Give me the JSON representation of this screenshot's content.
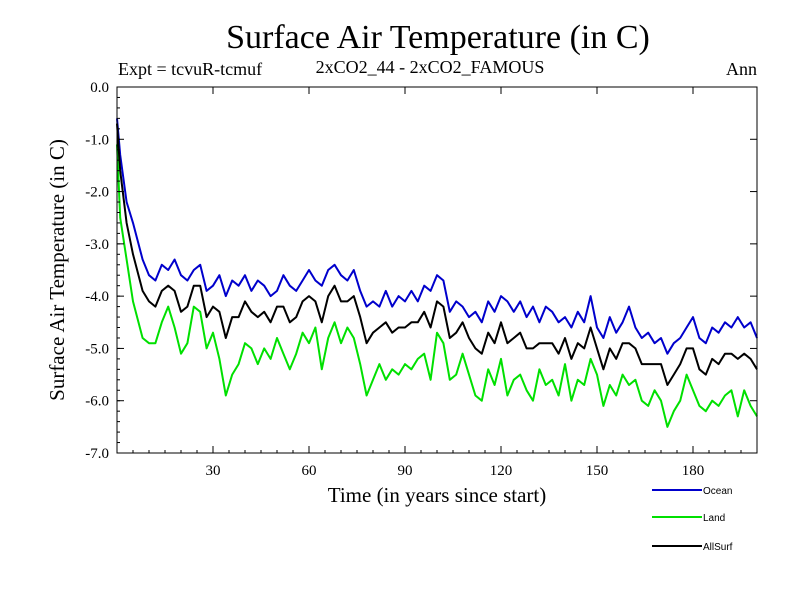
{
  "chart_data": {
    "type": "line",
    "title": "Surface Air Temperature (in C)",
    "expt_label": "Expt = tcvuR-tcmuf",
    "subtitle": "2xCO2_44 - 2xCO2_FAMOUS",
    "season": "Ann",
    "xlabel": "Time (in years since start)",
    "ylabel": "Surface Air Temperature (in C)",
    "xlim": [
      0,
      200
    ],
    "ylim": [
      -7.0,
      0.0
    ],
    "xticks": [
      30,
      60,
      90,
      120,
      150,
      180
    ],
    "yticks": [
      0.0,
      -1.0,
      -2.0,
      -3.0,
      -4.0,
      -5.0,
      -6.0,
      -7.0
    ],
    "ytick_labels": [
      "0.0",
      "-1.0",
      "-2.0",
      "-3.0",
      "-4.0",
      "-5.0",
      "-6.0",
      "-7.0"
    ],
    "legend_position": "bottom-right, below plot",
    "series": [
      {
        "name": "Ocean",
        "color": "#0000cc",
        "x": [
          0,
          1,
          3,
          5,
          8,
          10,
          12,
          14,
          16,
          18,
          20,
          22,
          24,
          26,
          28,
          30,
          32,
          34,
          36,
          38,
          40,
          42,
          44,
          46,
          48,
          50,
          52,
          54,
          56,
          58,
          60,
          62,
          64,
          66,
          68,
          70,
          72,
          74,
          76,
          78,
          80,
          82,
          84,
          86,
          88,
          90,
          92,
          94,
          96,
          98,
          100,
          102,
          104,
          106,
          108,
          110,
          112,
          114,
          116,
          118,
          120,
          122,
          124,
          126,
          128,
          130,
          132,
          134,
          136,
          138,
          140,
          142,
          144,
          146,
          148,
          150,
          152,
          154,
          156,
          158,
          160,
          162,
          164,
          166,
          168,
          170,
          172,
          174,
          176,
          178,
          180,
          182,
          184,
          186,
          188,
          190,
          192,
          194,
          196,
          198,
          200
        ],
        "values": [
          -0.6,
          -1.3,
          -2.2,
          -2.6,
          -3.3,
          -3.6,
          -3.7,
          -3.4,
          -3.5,
          -3.3,
          -3.6,
          -3.7,
          -3.5,
          -3.4,
          -3.9,
          -3.8,
          -3.6,
          -4.0,
          -3.7,
          -3.8,
          -3.6,
          -3.9,
          -3.7,
          -3.8,
          -4.0,
          -3.9,
          -3.6,
          -3.8,
          -3.9,
          -3.7,
          -3.5,
          -3.7,
          -3.8,
          -3.5,
          -3.4,
          -3.6,
          -3.7,
          -3.5,
          -3.9,
          -4.2,
          -4.1,
          -4.2,
          -3.9,
          -4.2,
          -4.0,
          -4.1,
          -3.9,
          -4.1,
          -3.8,
          -3.9,
          -3.6,
          -3.7,
          -4.3,
          -4.1,
          -4.2,
          -4.4,
          -4.3,
          -4.5,
          -4.1,
          -4.3,
          -4.0,
          -4.1,
          -4.3,
          -4.1,
          -4.4,
          -4.2,
          -4.5,
          -4.2,
          -4.3,
          -4.5,
          -4.4,
          -4.6,
          -4.3,
          -4.5,
          -4.0,
          -4.6,
          -4.8,
          -4.4,
          -4.7,
          -4.5,
          -4.2,
          -4.6,
          -4.8,
          -4.7,
          -4.9,
          -4.8,
          -5.1,
          -4.9,
          -4.8,
          -4.6,
          -4.4,
          -4.8,
          -4.9,
          -4.6,
          -4.7,
          -4.5,
          -4.6,
          -4.4,
          -4.6,
          -4.5,
          -4.8
        ]
      },
      {
        "name": "Land",
        "color": "#00e000",
        "x": [
          0,
          1,
          3,
          5,
          8,
          10,
          12,
          14,
          16,
          18,
          20,
          22,
          24,
          26,
          28,
          30,
          32,
          34,
          36,
          38,
          40,
          42,
          44,
          46,
          48,
          50,
          52,
          54,
          56,
          58,
          60,
          62,
          64,
          66,
          68,
          70,
          72,
          74,
          76,
          78,
          80,
          82,
          84,
          86,
          88,
          90,
          92,
          94,
          96,
          98,
          100,
          102,
          104,
          106,
          108,
          110,
          112,
          114,
          116,
          118,
          120,
          122,
          124,
          126,
          128,
          130,
          132,
          134,
          136,
          138,
          140,
          142,
          144,
          146,
          148,
          150,
          152,
          154,
          156,
          158,
          160,
          162,
          164,
          166,
          168,
          170,
          172,
          174,
          176,
          178,
          180,
          182,
          184,
          186,
          188,
          190,
          192,
          194,
          196,
          198,
          200
        ],
        "values": [
          -1.1,
          -2.5,
          -3.3,
          -4.1,
          -4.8,
          -4.9,
          -4.9,
          -4.5,
          -4.2,
          -4.6,
          -5.1,
          -4.9,
          -4.2,
          -4.3,
          -5.0,
          -4.7,
          -5.2,
          -5.9,
          -5.5,
          -5.3,
          -4.9,
          -5.0,
          -5.3,
          -5.0,
          -5.2,
          -4.8,
          -5.1,
          -5.4,
          -5.1,
          -4.7,
          -4.9,
          -4.6,
          -5.4,
          -4.8,
          -4.5,
          -4.9,
          -4.6,
          -4.8,
          -5.3,
          -5.9,
          -5.6,
          -5.3,
          -5.6,
          -5.4,
          -5.5,
          -5.3,
          -5.4,
          -5.2,
          -5.1,
          -5.6,
          -4.7,
          -4.9,
          -5.6,
          -5.5,
          -5.1,
          -5.5,
          -5.9,
          -6.0,
          -5.4,
          -5.7,
          -5.2,
          -5.9,
          -5.6,
          -5.5,
          -5.8,
          -6.0,
          -5.4,
          -5.7,
          -5.6,
          -5.9,
          -5.3,
          -6.0,
          -5.6,
          -5.7,
          -5.2,
          -5.5,
          -6.1,
          -5.7,
          -5.9,
          -5.5,
          -5.7,
          -5.6,
          -6.0,
          -6.1,
          -5.8,
          -6.0,
          -6.5,
          -6.2,
          -6.0,
          -5.5,
          -5.8,
          -6.1,
          -6.2,
          -6.0,
          -6.1,
          -5.9,
          -5.8,
          -6.3,
          -5.8,
          -6.1,
          -6.3
        ]
      },
      {
        "name": "AllSurf",
        "color": "#000000",
        "x": [
          0,
          1,
          3,
          5,
          8,
          10,
          12,
          14,
          16,
          18,
          20,
          22,
          24,
          26,
          28,
          30,
          32,
          34,
          36,
          38,
          40,
          42,
          44,
          46,
          48,
          50,
          52,
          54,
          56,
          58,
          60,
          62,
          64,
          66,
          68,
          70,
          72,
          74,
          76,
          78,
          80,
          82,
          84,
          86,
          88,
          90,
          92,
          94,
          96,
          98,
          100,
          102,
          104,
          106,
          108,
          110,
          112,
          114,
          116,
          118,
          120,
          122,
          124,
          126,
          128,
          130,
          132,
          134,
          136,
          138,
          140,
          142,
          144,
          146,
          148,
          150,
          152,
          154,
          156,
          158,
          160,
          162,
          164,
          166,
          168,
          170,
          172,
          174,
          176,
          178,
          180,
          182,
          184,
          186,
          188,
          190,
          192,
          194,
          196,
          198,
          200
        ],
        "values": [
          -0.7,
          -1.6,
          -2.6,
          -3.2,
          -3.9,
          -4.1,
          -4.2,
          -3.9,
          -3.8,
          -3.9,
          -4.3,
          -4.2,
          -3.8,
          -3.8,
          -4.4,
          -4.2,
          -4.3,
          -4.8,
          -4.4,
          -4.4,
          -4.1,
          -4.3,
          -4.4,
          -4.3,
          -4.5,
          -4.2,
          -4.2,
          -4.5,
          -4.4,
          -4.1,
          -4.0,
          -4.1,
          -4.5,
          -4.0,
          -3.8,
          -4.1,
          -4.1,
          -4.0,
          -4.4,
          -4.9,
          -4.7,
          -4.6,
          -4.5,
          -4.7,
          -4.6,
          -4.6,
          -4.5,
          -4.5,
          -4.3,
          -4.6,
          -4.1,
          -4.2,
          -4.8,
          -4.7,
          -4.5,
          -4.8,
          -5.0,
          -5.1,
          -4.7,
          -4.9,
          -4.5,
          -4.9,
          -4.8,
          -4.7,
          -5.0,
          -5.0,
          -4.9,
          -4.9,
          -4.9,
          -5.1,
          -4.8,
          -5.2,
          -4.9,
          -5.0,
          -4.6,
          -5.0,
          -5.4,
          -5.0,
          -5.2,
          -4.9,
          -4.9,
          -5.0,
          -5.3,
          -5.3,
          -5.3,
          -5.3,
          -5.7,
          -5.5,
          -5.3,
          -5.0,
          -5.0,
          -5.4,
          -5.5,
          -5.2,
          -5.3,
          -5.1,
          -5.1,
          -5.2,
          -5.1,
          -5.2,
          -5.4
        ]
      }
    ]
  }
}
